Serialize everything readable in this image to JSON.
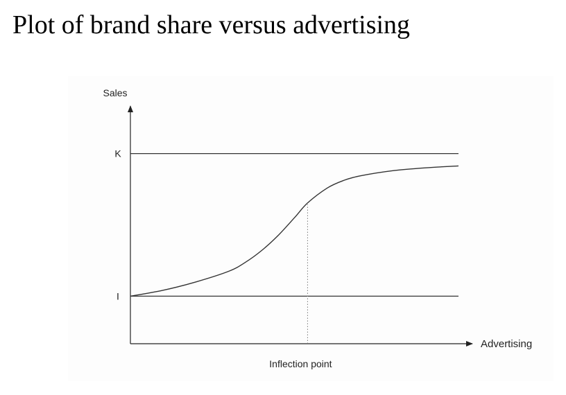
{
  "title": "Plot of brand share versus advertising",
  "chart_data": {
    "type": "line",
    "title": "Plot of brand share versus advertising",
    "xlabel": "Advertising",
    "ylabel": "Sales",
    "xlim": [
      0,
      10
    ],
    "ylim": [
      0,
      10
    ],
    "y_tick_labels": [
      {
        "label": "K",
        "value": 8
      },
      {
        "label": "I",
        "value": 2
      }
    ],
    "reference_lines": [
      {
        "label": "K",
        "y": 8,
        "style": "solid"
      },
      {
        "label": "I",
        "y": 2,
        "style": "solid"
      }
    ],
    "annotations": [
      {
        "text": "Inflection point",
        "x": 5.4,
        "style": "dotted-vertical"
      }
    ],
    "series": [
      {
        "x": [
          0,
          1,
          2,
          3,
          3.5,
          4,
          4.5,
          5,
          5.4,
          6,
          6.5,
          7,
          8,
          9,
          10
        ],
        "values": [
          2,
          2.25,
          2.6,
          3.05,
          3.42,
          3.92,
          4.55,
          5.3,
          5.92,
          6.55,
          6.87,
          7.06,
          7.28,
          7.4,
          7.48
        ]
      }
    ],
    "grid": false
  }
}
